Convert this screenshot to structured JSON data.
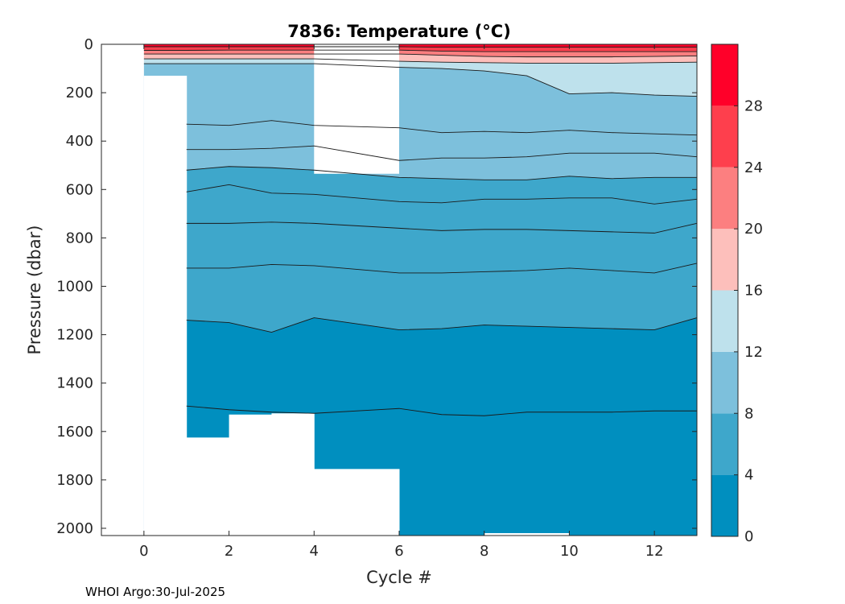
{
  "chart_data": {
    "type": "heatmap",
    "subtype": "filled-contour",
    "title": "7836:  Temperature (°C)",
    "xlabel": "Cycle #",
    "ylabel": "Pressure (dbar)",
    "xlim": [
      -1,
      13
    ],
    "ylim": [
      2030,
      0
    ],
    "xticks": [
      0,
      2,
      4,
      6,
      8,
      10,
      12
    ],
    "yticks": [
      0,
      200,
      400,
      600,
      800,
      1000,
      1200,
      1400,
      1600,
      1800,
      2000
    ],
    "cycles": [
      0,
      1,
      2,
      3,
      4,
      6,
      7,
      8,
      9,
      10,
      11,
      12,
      13
    ],
    "profile_max_depth": [
      130,
      1625,
      1530,
      1525,
      1755,
      2030,
      2030,
      2020,
      2020,
      2030,
      2030,
      2030,
      2030
    ],
    "profile_min_depth_cycle5_gap": {
      "from_cycle": 4,
      "to_cycle": 6,
      "top_of_data": 535
    },
    "levels": [
      0,
      4,
      8,
      12,
      16,
      20,
      24,
      28,
      32
    ],
    "isotherms": [
      {
        "temp": 28,
        "depth": [
          10,
          10,
          10,
          10,
          10,
          10,
          12,
          12,
          12,
          12,
          12,
          12,
          12
        ]
      },
      {
        "temp": 24,
        "depth": [
          25,
          25,
          24,
          24,
          24,
          24,
          28,
          30,
          30,
          30,
          30,
          30,
          30
        ]
      },
      {
        "temp": 20,
        "depth": [
          40,
          40,
          40,
          40,
          40,
          40,
          45,
          50,
          52,
          52,
          52,
          50,
          48
        ]
      },
      {
        "temp": 16,
        "depth": [
          60,
          60,
          60,
          60,
          60,
          70,
          74,
          76,
          78,
          78,
          78,
          76,
          74
        ]
      },
      {
        "temp": 12,
        "depth": [
          80,
          80,
          80,
          80,
          80,
          95,
          100,
          110,
          130,
          205,
          200,
          210,
          215
        ]
      },
      {
        "temp": 10,
        "depth": [
          null,
          330,
          335,
          315,
          335,
          345,
          365,
          360,
          365,
          355,
          365,
          370,
          375
        ]
      },
      {
        "temp": 9,
        "depth": [
          null,
          435,
          435,
          430,
          420,
          480,
          470,
          470,
          465,
          450,
          450,
          450,
          465
        ]
      },
      {
        "temp": 8,
        "depth": [
          null,
          520,
          505,
          510,
          520,
          550,
          555,
          560,
          560,
          545,
          555,
          550,
          550
        ]
      },
      {
        "temp": 7,
        "depth": [
          null,
          610,
          580,
          615,
          620,
          650,
          655,
          640,
          640,
          635,
          635,
          660,
          640
        ]
      },
      {
        "temp": 6,
        "depth": [
          null,
          740,
          740,
          735,
          740,
          760,
          770,
          765,
          765,
          770,
          775,
          780,
          740
        ]
      },
      {
        "temp": 5,
        "depth": [
          null,
          925,
          925,
          910,
          915,
          945,
          945,
          940,
          935,
          925,
          935,
          945,
          905
        ]
      },
      {
        "temp": 4,
        "depth": [
          null,
          1140,
          1150,
          1190,
          1130,
          1180,
          1175,
          1160,
          1165,
          1170,
          1175,
          1180,
          1130
        ]
      },
      {
        "temp": 3,
        "depth": [
          null,
          1495,
          1510,
          1520,
          1525,
          1505,
          1530,
          1535,
          1520,
          1520,
          1520,
          1515,
          1515
        ]
      }
    ],
    "colorbar": {
      "ticks": [
        0,
        4,
        8,
        12,
        16,
        20,
        24,
        28
      ],
      "colors": [
        "#008fbf",
        "#3ea7cb",
        "#7dc0dc",
        "#bee1ec",
        "#fdbfbb",
        "#fc7f80",
        "#fe3f4d",
        "#ff0029"
      ]
    }
  },
  "footer": "WHOI Argo:30-Jul-2025"
}
